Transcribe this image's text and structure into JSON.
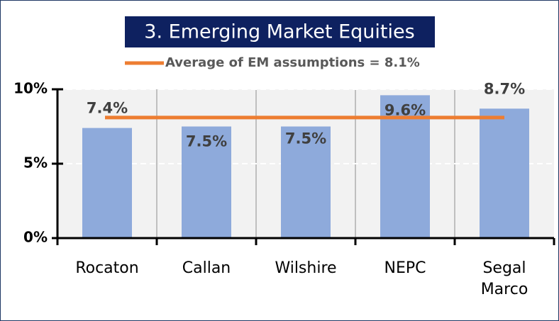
{
  "chart_data": {
    "type": "bar",
    "title": "3. Emerging Market Equities",
    "categories": [
      "Rocaton",
      "Callan",
      "Wilshire",
      "NEPC",
      "Segal Marco"
    ],
    "values": [
      7.4,
      7.5,
      7.5,
      9.6,
      8.7
    ],
    "value_labels": [
      "7.4%",
      "7.5%",
      "7.5%",
      "9.6%",
      "8.7%"
    ],
    "color": "#8eaadb",
    "ylim": [
      0,
      10
    ],
    "yticks": [
      {
        "value": 0,
        "label": "0%"
      },
      {
        "value": 5,
        "label": "5%"
      },
      {
        "value": 10,
        "label": "10%"
      }
    ],
    "grid": true,
    "average": {
      "name": "Average of EM assumptions = 8.1%",
      "value": 8.1,
      "color": "#ed7d31"
    }
  }
}
